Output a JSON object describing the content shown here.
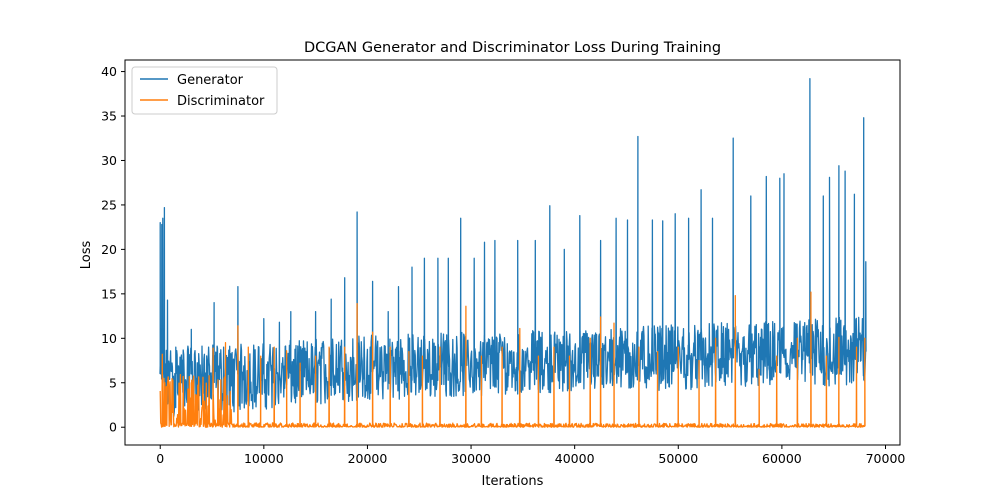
{
  "chart_data": {
    "type": "line",
    "title": "DCGAN Generator and Discriminator Loss During Training",
    "xlabel": "Iterations",
    "ylabel": "Loss",
    "xlim": [
      -3400,
      71400
    ],
    "ylim": [
      -2.0,
      41.3
    ],
    "x_ticks": [
      0,
      10000,
      20000,
      30000,
      40000,
      50000,
      60000,
      70000
    ],
    "x_tick_labels": [
      "0",
      "10000",
      "20000",
      "30000",
      "40000",
      "50000",
      "60000",
      "70000"
    ],
    "y_ticks": [
      0,
      5,
      10,
      15,
      20,
      25,
      30,
      35,
      40
    ],
    "y_tick_labels": [
      "0",
      "5",
      "10",
      "15",
      "20",
      "25",
      "30",
      "35",
      "40"
    ],
    "grid": false,
    "legend_position": "top-left",
    "series": [
      {
        "name": "Generator",
        "color": "#1f77b4",
        "x_range": [
          0,
          68000
        ],
        "baseline": [
          [
            0,
            6.0
          ],
          [
            5000,
            6.0
          ],
          [
            10000,
            6.0
          ],
          [
            20000,
            6.2
          ],
          [
            30000,
            7.0
          ],
          [
            40000,
            7.4
          ],
          [
            50000,
            7.6
          ],
          [
            60000,
            8.0
          ],
          [
            68000,
            8.5
          ]
        ],
        "band_low": [
          [
            0,
            1.0
          ],
          [
            10000,
            2.0
          ],
          [
            20000,
            3.0
          ],
          [
            40000,
            4.0
          ],
          [
            68000,
            4.5
          ]
        ],
        "band_high": [
          [
            0,
            9.0
          ],
          [
            10000,
            9.5
          ],
          [
            20000,
            10.5
          ],
          [
            40000,
            11.0
          ],
          [
            68000,
            12.5
          ]
        ],
        "spikes": [
          [
            0,
            23.0
          ],
          [
            150,
            22.8
          ],
          [
            250,
            23.5
          ],
          [
            400,
            24.7
          ],
          [
            700,
            14.3
          ],
          [
            1500,
            9.0
          ],
          [
            3000,
            11.0
          ],
          [
            5200,
            14.0
          ],
          [
            7500,
            15.8
          ],
          [
            10000,
            12.2
          ],
          [
            11500,
            11.8
          ],
          [
            12600,
            13.0
          ],
          [
            15000,
            13.0
          ],
          [
            16500,
            14.4
          ],
          [
            17800,
            16.8
          ],
          [
            19000,
            24.2
          ],
          [
            20500,
            16.4
          ],
          [
            22000,
            13.0
          ],
          [
            23000,
            15.8
          ],
          [
            24300,
            18.0
          ],
          [
            25500,
            19.0
          ],
          [
            26800,
            19.0
          ],
          [
            27800,
            19.0
          ],
          [
            29000,
            23.5
          ],
          [
            30300,
            19.0
          ],
          [
            31300,
            20.8
          ],
          [
            32300,
            21.0
          ],
          [
            34500,
            21.0
          ],
          [
            36200,
            21.0
          ],
          [
            37600,
            24.9
          ],
          [
            39000,
            20.0
          ],
          [
            40500,
            23.8
          ],
          [
            42500,
            21.0
          ],
          [
            44000,
            23.5
          ],
          [
            45100,
            23.3
          ],
          [
            46100,
            32.7
          ],
          [
            47500,
            23.3
          ],
          [
            48500,
            23.2
          ],
          [
            49700,
            24.0
          ],
          [
            51000,
            23.5
          ],
          [
            52200,
            26.7
          ],
          [
            53300,
            23.5
          ],
          [
            55300,
            32.5
          ],
          [
            57000,
            26.0
          ],
          [
            58500,
            28.2
          ],
          [
            59800,
            28.0
          ],
          [
            60200,
            28.5
          ],
          [
            62700,
            39.2
          ],
          [
            64000,
            26.0
          ],
          [
            64600,
            28.1
          ],
          [
            65500,
            29.4
          ],
          [
            66100,
            28.8
          ],
          [
            67000,
            26.2
          ],
          [
            67900,
            34.8
          ],
          [
            68100,
            18.6
          ]
        ]
      },
      {
        "name": "Discriminator",
        "color": "#ff7f0e",
        "x_range": [
          0,
          68000
        ],
        "baseline": [
          [
            0,
            0.1
          ],
          [
            68000,
            0.1
          ]
        ],
        "band_low": [
          [
            0,
            0.0
          ],
          [
            68000,
            0.0
          ]
        ],
        "band_high": [
          [
            0,
            0.5
          ],
          [
            68000,
            0.4
          ]
        ],
        "burst_region": [
          0,
          7000
        ],
        "burst_level": 6.0,
        "spikes": [
          [
            200,
            8.2
          ],
          [
            450,
            5.0
          ],
          [
            3000,
            5.0
          ],
          [
            5100,
            8.9
          ],
          [
            6300,
            9.5
          ],
          [
            7500,
            11.4
          ],
          [
            8500,
            9.0
          ],
          [
            9700,
            8.0
          ],
          [
            11000,
            9.0
          ],
          [
            12200,
            8.6
          ],
          [
            13500,
            7.2
          ],
          [
            15000,
            8.0
          ],
          [
            16300,
            9.0
          ],
          [
            17800,
            9.0
          ],
          [
            19000,
            13.9
          ],
          [
            20500,
            10.7
          ],
          [
            22200,
            9.0
          ],
          [
            24000,
            8.5
          ],
          [
            25300,
            8.0
          ],
          [
            27000,
            9.0
          ],
          [
            29500,
            13.6
          ],
          [
            31000,
            8.0
          ],
          [
            33000,
            9.0
          ],
          [
            34700,
            11.1
          ],
          [
            36500,
            8.0
          ],
          [
            38000,
            9.0
          ],
          [
            39500,
            8.0
          ],
          [
            41500,
            10.0
          ],
          [
            42500,
            12.4
          ],
          [
            43800,
            11.7
          ],
          [
            46200,
            9.0
          ],
          [
            48000,
            8.5
          ],
          [
            50000,
            9.0
          ],
          [
            52000,
            7.5
          ],
          [
            53600,
            10.0
          ],
          [
            55500,
            14.8
          ],
          [
            57800,
            6.5
          ],
          [
            59500,
            8.0
          ],
          [
            61500,
            10.0
          ],
          [
            62800,
            15.2
          ],
          [
            64300,
            8.0
          ],
          [
            65500,
            10.1
          ],
          [
            67200,
            9.0
          ],
          [
            68000,
            10.0
          ]
        ]
      }
    ]
  }
}
